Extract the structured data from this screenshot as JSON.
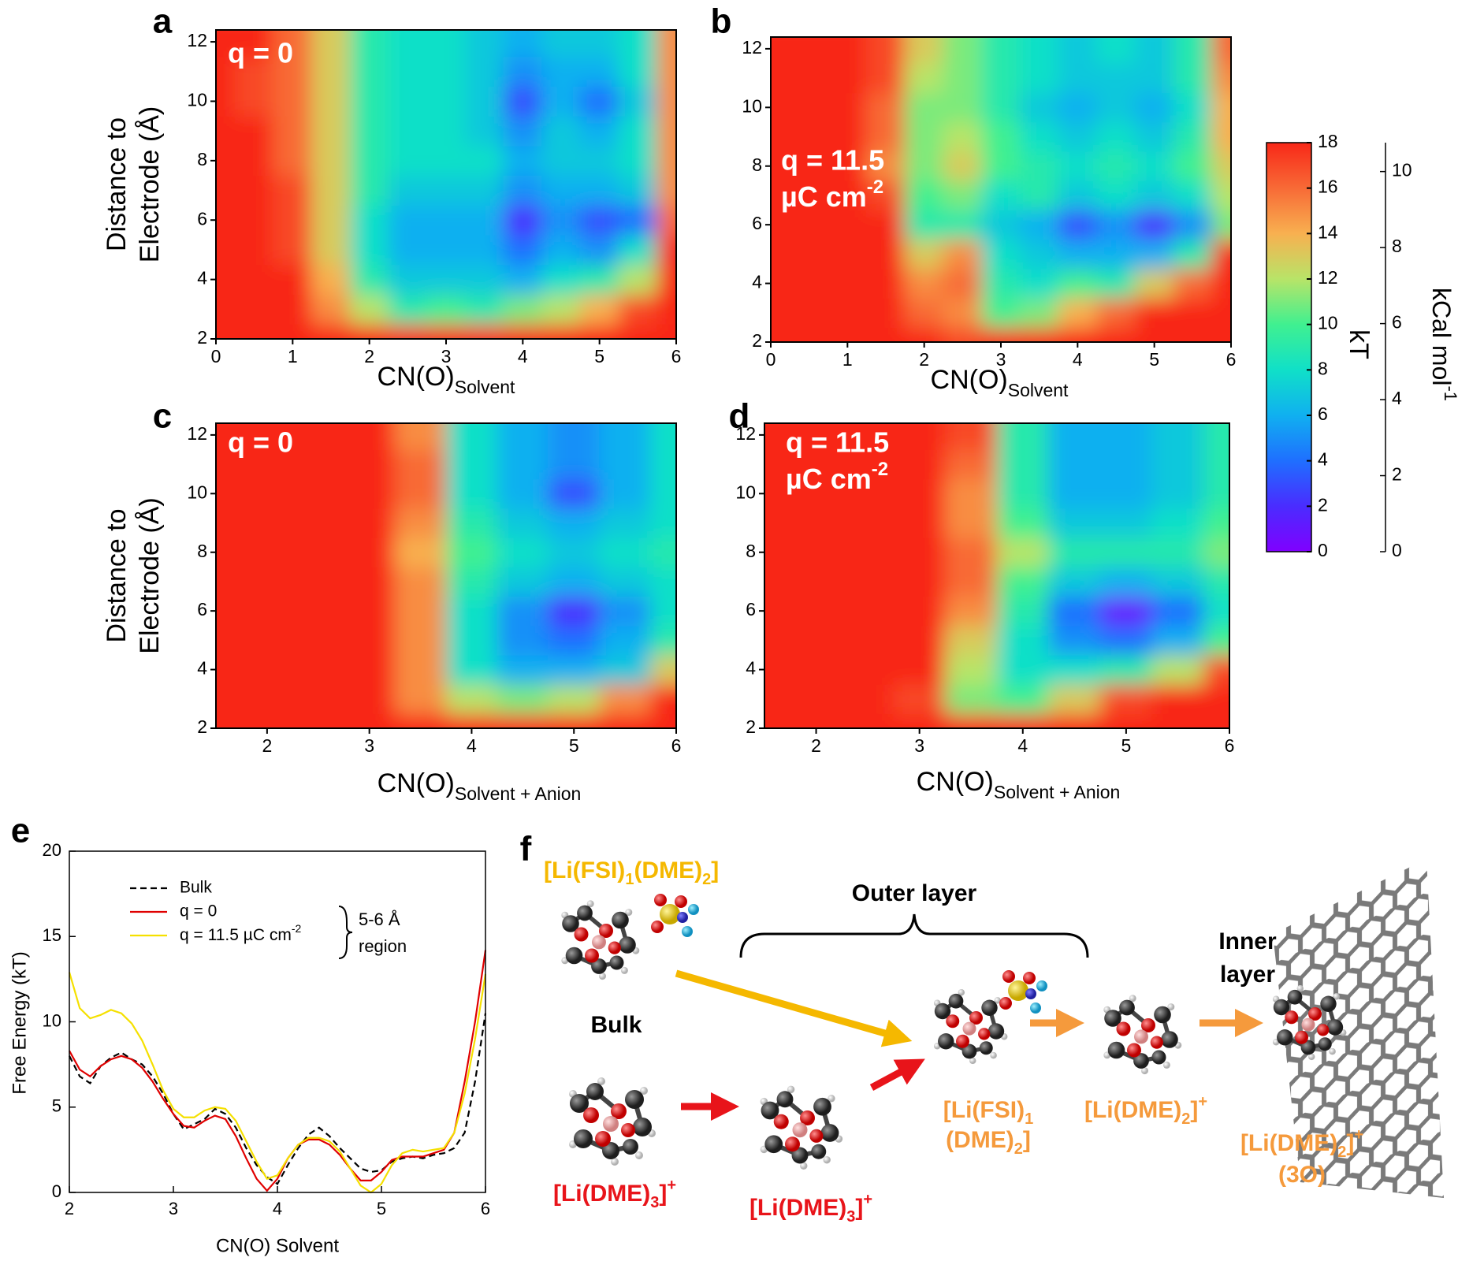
{
  "chart_data": [
    {
      "type": "heatmap",
      "label": "a",
      "annotation": [
        "q = 0"
      ],
      "ylabel": [
        "Distance to",
        "Electrode (Å)"
      ],
      "xlabel": [
        "CN(O)",
        {
          "sub": "Solvent"
        }
      ],
      "xlim": [
        0,
        6
      ],
      "ylim": [
        2,
        12.4
      ],
      "xticks": [
        0,
        1,
        2,
        3,
        4,
        5,
        6
      ],
      "yticks": [
        2,
        4,
        6,
        8,
        10,
        12
      ],
      "x": [
        0,
        0.5,
        1,
        1.5,
        2,
        2.5,
        3,
        3.5,
        4,
        4.5,
        5,
        5.5,
        6
      ],
      "y": [
        2,
        3,
        4,
        5,
        6,
        7,
        8,
        9,
        10,
        11,
        12
      ],
      "z": [
        [
          18,
          18,
          18,
          18,
          18,
          18,
          18,
          18,
          18,
          18,
          18,
          18,
          18
        ],
        [
          18,
          18,
          18,
          15,
          12,
          9,
          10,
          9,
          11,
          12,
          14,
          17,
          18
        ],
        [
          18,
          18,
          18,
          14,
          9,
          7,
          7,
          7,
          6,
          8,
          9,
          12,
          18
        ],
        [
          18,
          18,
          17,
          13,
          8,
          6,
          6,
          6,
          4,
          6,
          5,
          8,
          18
        ],
        [
          18,
          18,
          17,
          13,
          8,
          6,
          6,
          6,
          2,
          5,
          3,
          4,
          16
        ],
        [
          18,
          18,
          17,
          13,
          9,
          7,
          7,
          7,
          5,
          6,
          6,
          7,
          15
        ],
        [
          18,
          18,
          16,
          13,
          9,
          8,
          8,
          8,
          6,
          7,
          7,
          8,
          15
        ],
        [
          18,
          18,
          16,
          13,
          9,
          8,
          8,
          7,
          5,
          7,
          6,
          8,
          15
        ],
        [
          18,
          17,
          16,
          13,
          9,
          8,
          8,
          7,
          3,
          6,
          4,
          7,
          15
        ],
        [
          18,
          17,
          16,
          13,
          9,
          8,
          8,
          7,
          5,
          6,
          6,
          8,
          15
        ],
        [
          18,
          18,
          16,
          13,
          9,
          8,
          8,
          7,
          6,
          7,
          7,
          8,
          15
        ]
      ]
    },
    {
      "type": "heatmap",
      "label": "b",
      "annotation": [
        "q = 11.5",
        [
          "µC cm",
          {
            "sup": "-2"
          }
        ]
      ],
      "xlabel": [
        "CN(O)",
        {
          "sub": "Solvent"
        }
      ],
      "xlim": [
        0,
        6
      ],
      "ylim": [
        2,
        12.4
      ],
      "xticks": [
        0,
        1,
        2,
        3,
        4,
        5,
        6
      ],
      "yticks": [
        2,
        4,
        6,
        8,
        10,
        12
      ],
      "x": [
        0,
        0.5,
        1,
        1.5,
        2,
        2.5,
        3,
        3.5,
        4,
        4.5,
        5,
        5.5,
        6
      ],
      "y": [
        2,
        3,
        4,
        5,
        6,
        7,
        8,
        9,
        10,
        11,
        12
      ],
      "z": [
        [
          18,
          18,
          18,
          18,
          18,
          17,
          18,
          18,
          18,
          18,
          18,
          18,
          18
        ],
        [
          18,
          18,
          18,
          18,
          16,
          15,
          10,
          11,
          14,
          16,
          18,
          18,
          18
        ],
        [
          18,
          18,
          18,
          18,
          15,
          16,
          9,
          8,
          10,
          9,
          13,
          16,
          18
        ],
        [
          18,
          18,
          18,
          18,
          13,
          15,
          8,
          7,
          6,
          6,
          6,
          9,
          18
        ],
        [
          18,
          18,
          18,
          18,
          9,
          9,
          7,
          6,
          3,
          5,
          2,
          5,
          11
        ],
        [
          18,
          18,
          18,
          17,
          10,
          11,
          8,
          9,
          7,
          8,
          7,
          8,
          12
        ],
        [
          18,
          18,
          18,
          15,
          11,
          13,
          10,
          9,
          8,
          9,
          8,
          10,
          13
        ],
        [
          18,
          18,
          18,
          16,
          11,
          12,
          10,
          8,
          7,
          8,
          7,
          9,
          14
        ],
        [
          18,
          18,
          18,
          16,
          11,
          11,
          9,
          7,
          6,
          7,
          6,
          8,
          14
        ],
        [
          18,
          18,
          18,
          17,
          12,
          11,
          9,
          8,
          7,
          7,
          7,
          9,
          15
        ],
        [
          18,
          18,
          18,
          17,
          13,
          11,
          9,
          8,
          7,
          8,
          7,
          9,
          16
        ]
      ]
    },
    {
      "type": "heatmap",
      "label": "c",
      "annotation": [
        "q = 0"
      ],
      "ylabel": [
        "Distance to",
        "Electrode (Å)"
      ],
      "xlabel": [
        "CN(O)",
        {
          "sub": "Solvent + Anion"
        }
      ],
      "xlim": [
        1.5,
        6
      ],
      "ylim": [
        2,
        12.4
      ],
      "xticks": [
        2,
        3,
        4,
        5,
        6
      ],
      "yticks": [
        2,
        4,
        6,
        8,
        10,
        12
      ],
      "x": [
        1.5,
        2,
        2.5,
        3,
        3.5,
        4,
        4.5,
        5,
        5.5,
        6
      ],
      "y": [
        2,
        3,
        4,
        5,
        6,
        7,
        8,
        9,
        10,
        11,
        12
      ],
      "z": [
        [
          18,
          18,
          18,
          18,
          18,
          18,
          18,
          18,
          18,
          18
        ],
        [
          18,
          18,
          18,
          18,
          15,
          12,
          11,
          12,
          15,
          18
        ],
        [
          18,
          18,
          18,
          18,
          15,
          8,
          6,
          6,
          7,
          13
        ],
        [
          18,
          18,
          18,
          18,
          15,
          8,
          5,
          4,
          6,
          9
        ],
        [
          18,
          18,
          18,
          18,
          15,
          8,
          5,
          2,
          5,
          8
        ],
        [
          18,
          18,
          18,
          18,
          15,
          9,
          7,
          6,
          7,
          8
        ],
        [
          18,
          18,
          18,
          18,
          14,
          10,
          8,
          7,
          8,
          9
        ],
        [
          18,
          18,
          18,
          18,
          15,
          9,
          7,
          6,
          7,
          8
        ],
        [
          18,
          18,
          18,
          18,
          16,
          8,
          6,
          3,
          6,
          8
        ],
        [
          18,
          18,
          18,
          18,
          16,
          8,
          6,
          5,
          6,
          8
        ],
        [
          18,
          18,
          18,
          18,
          15,
          8,
          6,
          5,
          6,
          8
        ]
      ]
    },
    {
      "type": "heatmap",
      "label": "d",
      "annotation": [
        "q = 11.5",
        [
          "µC cm",
          {
            "sup": "-2"
          }
        ]
      ],
      "xlabel": [
        "CN(O)",
        {
          "sub": "Solvent + Anion"
        }
      ],
      "xlim": [
        1.5,
        6
      ],
      "ylim": [
        2,
        12.4
      ],
      "xticks": [
        2,
        3,
        4,
        5,
        6
      ],
      "yticks": [
        2,
        4,
        6,
        8,
        10,
        12
      ],
      "x": [
        1.5,
        2,
        2.5,
        3,
        3.5,
        4,
        4.5,
        5,
        5.5,
        6
      ],
      "y": [
        2,
        3,
        4,
        5,
        6,
        7,
        8,
        9,
        10,
        11,
        12
      ],
      "z": [
        [
          18,
          18,
          18,
          18,
          18,
          18,
          18,
          18,
          18,
          18
        ],
        [
          18,
          18,
          18,
          17,
          11,
          10,
          13,
          17,
          18,
          18
        ],
        [
          18,
          18,
          18,
          18,
          12,
          8,
          8,
          9,
          12,
          17
        ],
        [
          18,
          18,
          18,
          18,
          13,
          8,
          5,
          4,
          6,
          10
        ],
        [
          18,
          18,
          18,
          18,
          15,
          9,
          4,
          1,
          4,
          8
        ],
        [
          18,
          18,
          18,
          18,
          16,
          10,
          7,
          6,
          7,
          9
        ],
        [
          18,
          18,
          18,
          18,
          16,
          12,
          9,
          9,
          9,
          11
        ],
        [
          18,
          18,
          18,
          18,
          15,
          10,
          7,
          7,
          8,
          10
        ],
        [
          18,
          18,
          18,
          18,
          15,
          9,
          6,
          6,
          7,
          9
        ],
        [
          18,
          18,
          18,
          18,
          16,
          9,
          6,
          6,
          7,
          9
        ],
        [
          18,
          18,
          18,
          18,
          17,
          9,
          6,
          6,
          7,
          9
        ]
      ]
    },
    {
      "type": "colorbar",
      "label": "kT",
      "zlim": [
        0,
        18
      ],
      "zticks": [
        0,
        2,
        4,
        6,
        8,
        10,
        12,
        14,
        16,
        18
      ],
      "colors": [
        "#8000ff",
        "#4a2cff",
        "#1f6fff",
        "#10b0f0",
        "#10e0c8",
        "#40f090",
        "#b8e468",
        "#f8b050",
        "#f86a36",
        "#f82818"
      ],
      "y2label": [
        "kCal mol",
        {
          "sup": "-1"
        }
      ],
      "y2lim": [
        0,
        10.76
      ],
      "y2ticks": [
        0,
        2,
        4,
        6,
        8,
        10
      ]
    },
    {
      "type": "line",
      "label": "e",
      "xlabel": "CN(O) Solvent",
      "ylabel": "Free Energy (kT)",
      "xlim": [
        2,
        6
      ],
      "ylim": [
        0,
        20
      ],
      "xticks": [
        2,
        3,
        4,
        5,
        6
      ],
      "yticks": [
        0,
        5,
        10,
        15,
        20
      ],
      "annotation": [
        "5-6 Å",
        "region"
      ],
      "x": [
        2,
        2.1,
        2.2,
        2.3,
        2.4,
        2.5,
        2.6,
        2.7,
        2.8,
        2.9,
        3,
        3.1,
        3.2,
        3.3,
        3.4,
        3.5,
        3.6,
        3.7,
        3.8,
        3.9,
        4,
        4.1,
        4.2,
        4.3,
        4.4,
        4.5,
        4.6,
        4.7,
        4.8,
        4.9,
        5,
        5.1,
        5.2,
        5.3,
        5.4,
        5.5,
        5.6,
        5.7,
        5.8,
        5.9,
        6
      ],
      "series": [
        {
          "name": "Bulk",
          "color": "#000000",
          "dash": true,
          "values": [
            8,
            6.8,
            6.4,
            7.4,
            7.9,
            8.2,
            7.8,
            7.5,
            6.8,
            5.8,
            4.6,
            3.7,
            4,
            4.3,
            4.9,
            4.6,
            3.8,
            2.6,
            1.6,
            0.9,
            0.5,
            1.6,
            2.6,
            3.4,
            3.8,
            3.3,
            2.6,
            2,
            1.4,
            1.2,
            1.3,
            1.8,
            2,
            2.1,
            2,
            2.2,
            2.3,
            2.6,
            3.5,
            6.5,
            10.5
          ]
        },
        {
          "name": "q = 0",
          "color": "#e00000",
          "dash": false,
          "values": [
            8.3,
            7.2,
            6.8,
            7.4,
            7.8,
            8,
            7.8,
            7.3,
            6.5,
            5.5,
            4.6,
            3.9,
            3.8,
            4.2,
            4.5,
            4.3,
            3.3,
            2,
            0.8,
            0.1,
            0.8,
            2,
            2.8,
            3.1,
            3.1,
            2.8,
            2.2,
            1.4,
            0.7,
            0.7,
            1.2,
            1.9,
            2.1,
            2.1,
            2.1,
            2.3,
            2.5,
            3.5,
            6.5,
            10,
            14.2
          ]
        },
        {
          "name": [
            "q = 11.5 µC cm",
            {
              "sup": "-2"
            }
          ],
          "color": "#f5e000",
          "dash": false,
          "values": [
            12.9,
            10.8,
            10.2,
            10.4,
            10.7,
            10.5,
            9.9,
            8.9,
            7.5,
            6,
            4.9,
            4.4,
            4.4,
            4.8,
            5,
            4.9,
            4.2,
            3,
            1.8,
            0.8,
            1,
            2,
            2.8,
            3.2,
            3.2,
            3,
            2.4,
            1.4,
            0.4,
            0,
            0.5,
            1.6,
            2.3,
            2.5,
            2.4,
            2.5,
            2.6,
            3.5,
            5.8,
            9,
            12.8
          ]
        }
      ]
    }
  ],
  "diagram": {
    "label": "f",
    "complex_fsi": [
      "[Li(FSI)",
      {
        "sub": "1"
      },
      "(DME)",
      {
        "sub": "2"
      },
      "]"
    ],
    "outer_layer": "Outer layer",
    "bulk": "Bulk",
    "bulk_dme3": [
      "[Li(DME)",
      {
        "sub": "3"
      },
      "]",
      {
        "sup": "+"
      }
    ],
    "outer_dme3": [
      "[Li(DME)",
      {
        "sub": "3"
      },
      "]",
      {
        "sup": "+"
      }
    ],
    "outer_fsi": [
      [
        "[Li(FSI)",
        {
          "sub": "1"
        }
      ],
      [
        "(DME)",
        {
          "sub": "2"
        },
        "]"
      ]
    ],
    "outer_dme2": [
      "[Li(DME)",
      {
        "sub": "2"
      },
      "]",
      {
        "sup": "+"
      }
    ],
    "inner_layer": [
      "Inner",
      "layer"
    ],
    "inner_dme2": [
      [
        "[Li(DME)",
        {
          "sub": "2"
        },
        "]",
        {
          "sup": "+"
        }
      ],
      "(3O)"
    ]
  }
}
